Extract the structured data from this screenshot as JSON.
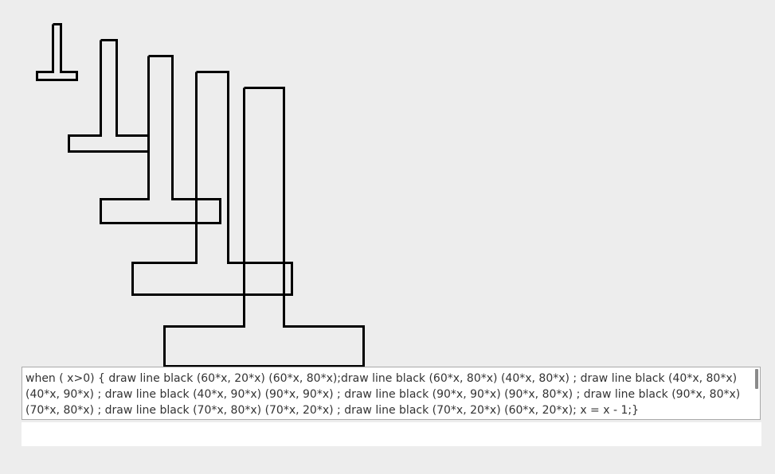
{
  "editor": {
    "code": "when ( x>0) { draw line black (60*x, 20*x) (60*x, 80*x);draw line black (60*x, 80*x) (40*x, 80*x) ; draw line black (40*x, 80*x) (40*x, 90*x) ; draw line black (40*x, 90*x) (90*x, 90*x) ; draw line black (90*x, 90*x) (90*x, 80*x) ; draw line black (90*x, 80*x) (70*x, 80*x) ; draw line black (70*x, 80*x) (70*x, 20*x) ; draw line black (70*x, 20*x) (60*x, 20*x); x = x - 1;}"
  },
  "drawing": {
    "line_color": "#000000",
    "iterations": [
      1,
      2,
      3,
      4,
      5
    ]
  },
  "colors": {
    "background": "#ededed",
    "editor_background": "#ffffff",
    "editor_border": "#a9a9a9"
  }
}
